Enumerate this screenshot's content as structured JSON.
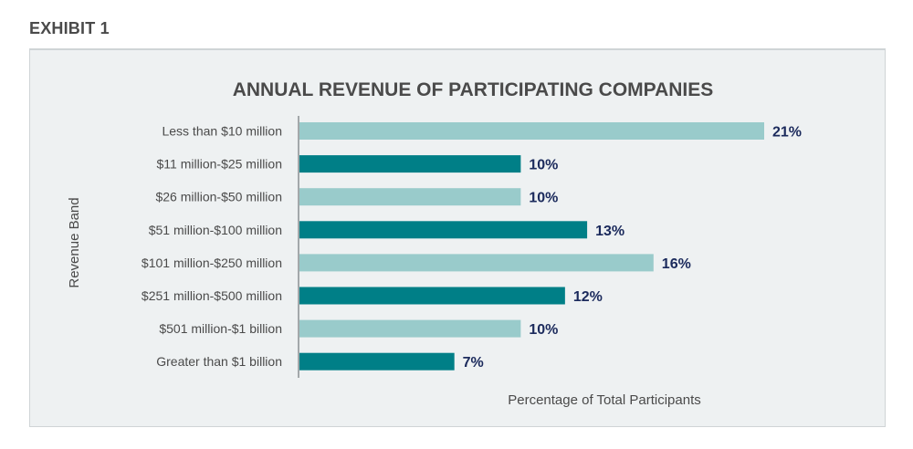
{
  "exhibit_label": "EXHIBIT 1",
  "chart_data": {
    "type": "bar",
    "orientation": "horizontal",
    "title": "ANNUAL REVENUE OF PARTICIPATING COMPANIES",
    "xlabel": "Percentage of Total Participants",
    "ylabel": "Revenue Band",
    "categories": [
      "Less than $10 million",
      "$11 million-$25 million",
      "$26 million-$50 million",
      "$51 million-$100 million",
      "$101 million-$250 million",
      "$251 million-$500 million",
      "$501 million-$1 billion",
      "Greater than $1 billion"
    ],
    "values": [
      21,
      10,
      10,
      13,
      16,
      12,
      10,
      7
    ],
    "value_labels": [
      "21%",
      "10%",
      "10%",
      "13%",
      "16%",
      "12%",
      "10%",
      "7%"
    ],
    "unit": "%",
    "xlim": [
      0,
      21
    ],
    "grid": false,
    "bar_colors": [
      "#99cbcb",
      "#007f87"
    ],
    "value_label_color": "#1b2a5c"
  }
}
